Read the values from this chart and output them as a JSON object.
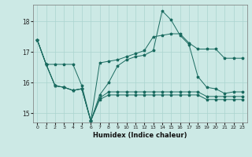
{
  "xlabel": "Humidex (Indice chaleur)",
  "background_color": "#cce9e5",
  "grid_color": "#aad4cf",
  "line_color": "#1a6b60",
  "xlim": [
    -0.5,
    23.5
  ],
  "ylim": [
    14.7,
    18.55
  ],
  "yticks": [
    15,
    16,
    17,
    18
  ],
  "xticks": [
    0,
    1,
    2,
    3,
    4,
    5,
    6,
    7,
    8,
    9,
    10,
    11,
    12,
    13,
    14,
    15,
    16,
    17,
    18,
    19,
    20,
    21,
    22,
    23
  ],
  "series": [
    [
      17.4,
      16.6,
      16.6,
      16.6,
      16.6,
      15.9,
      14.75,
      16.65,
      16.7,
      16.75,
      16.85,
      16.95,
      17.05,
      17.5,
      17.55,
      17.6,
      17.6,
      17.3,
      17.1,
      17.1,
      17.1,
      16.8,
      16.8,
      16.8
    ],
    [
      17.4,
      16.6,
      15.9,
      15.85,
      15.75,
      15.8,
      14.75,
      15.6,
      16.0,
      16.55,
      16.75,
      16.85,
      16.9,
      17.05,
      18.35,
      18.05,
      17.55,
      17.25,
      16.2,
      15.85,
      15.8,
      15.65,
      15.7,
      15.7
    ],
    [
      17.4,
      16.6,
      15.9,
      15.85,
      15.75,
      15.8,
      14.75,
      15.5,
      15.7,
      15.7,
      15.7,
      15.7,
      15.7,
      15.7,
      15.7,
      15.7,
      15.7,
      15.7,
      15.7,
      15.55,
      15.55,
      15.55,
      15.55,
      15.55
    ],
    [
      17.4,
      16.6,
      15.9,
      15.85,
      15.75,
      15.8,
      14.75,
      15.45,
      15.6,
      15.6,
      15.6,
      15.6,
      15.6,
      15.6,
      15.6,
      15.6,
      15.6,
      15.6,
      15.6,
      15.45,
      15.45,
      15.45,
      15.45,
      15.45
    ]
  ]
}
